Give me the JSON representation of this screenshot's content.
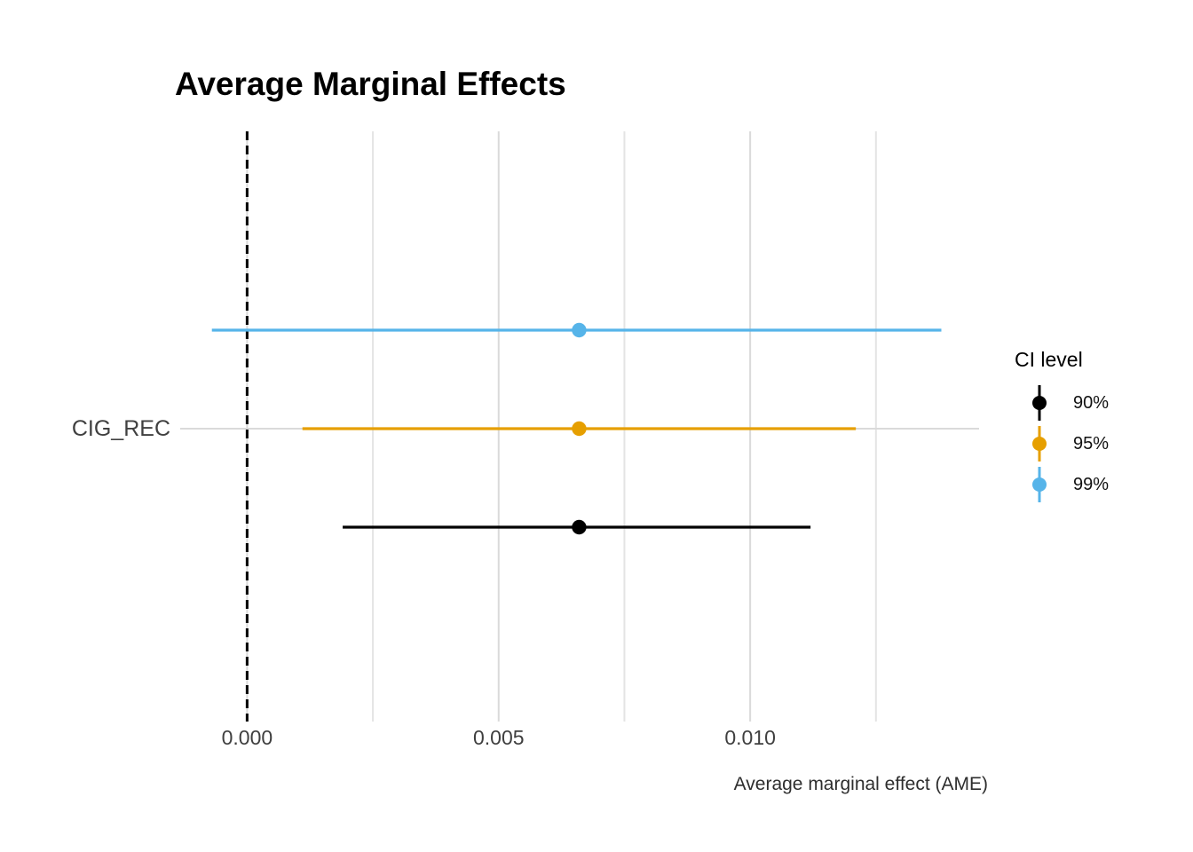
{
  "title": "Average Marginal Effects",
  "chart_data": {
    "type": "pointrange",
    "title": "Average Marginal Effects",
    "xlabel": "Average marginal effect (AME)",
    "ylabel": "",
    "categories": [
      "CIG_REC"
    ],
    "xlim": [
      -0.00133,
      0.01455
    ],
    "x_ticks": [
      {
        "value": 0.0,
        "label": "0.000"
      },
      {
        "value": 0.005,
        "label": "0.005"
      },
      {
        "value": 0.01,
        "label": "0.010"
      }
    ],
    "x_minor_gridlines": [
      0.0025,
      0.0075,
      0.0125
    ],
    "zero_reference_line": 0.0,
    "grid": "vertical major+minor, one horizontal line per category",
    "legend": {
      "title": "CI level",
      "position": "right"
    },
    "series": [
      {
        "level": "90%",
        "color": "#000000",
        "estimate": 0.0066,
        "ci_low": 0.0019,
        "ci_high": 0.0112,
        "row": 2
      },
      {
        "level": "95%",
        "color": "#E69F00",
        "estimate": 0.0066,
        "ci_low": 0.0011,
        "ci_high": 0.0121,
        "row": 1
      },
      {
        "level": "99%",
        "color": "#56B4E9",
        "estimate": 0.0066,
        "ci_low": -0.0007,
        "ci_high": 0.0138,
        "row": 0
      }
    ]
  },
  "style_colors": {
    "background": "#ffffff",
    "major_gridline": "#dadada",
    "minor_gridline": "#e4e4e4",
    "zero_line": "#000000",
    "axis_text": "#3f3f3f"
  }
}
